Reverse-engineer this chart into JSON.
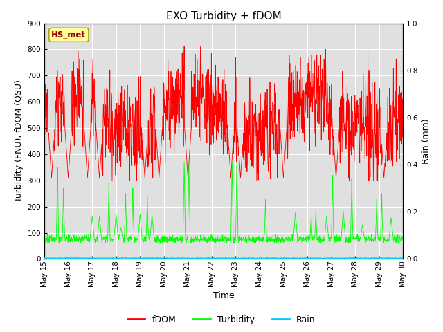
{
  "title": "EXO Turbidity + fDOM",
  "xlabel": "Time",
  "ylabel_left": "Turbidity (FNU), fDOM (QSU)",
  "ylabel_right": "Rain (mm)",
  "station_label": "HS_met",
  "xlim_days": [
    15,
    30
  ],
  "ylim_left": [
    0,
    900
  ],
  "ylim_right": [
    0,
    1.0
  ],
  "x_ticks": [
    15,
    16,
    17,
    18,
    19,
    20,
    21,
    22,
    23,
    24,
    25,
    26,
    27,
    28,
    29,
    30
  ],
  "x_tick_labels": [
    "May 15",
    "May 16",
    "May 17",
    "May 18",
    "May 19",
    "May 20",
    "May 21",
    "May 22",
    "May 23",
    "May 24",
    "May 25",
    "May 26",
    "May 27",
    "May 28",
    "May 29",
    "May 30"
  ],
  "y_ticks_left": [
    0,
    100,
    200,
    300,
    400,
    500,
    600,
    700,
    800,
    900
  ],
  "y_ticks_right": [
    0.0,
    0.2,
    0.4,
    0.6,
    0.8,
    1.0
  ],
  "fdom_color": "#ff0000",
  "turbidity_color": "#00ff00",
  "rain_color": "#00ccff",
  "background_color": "#ffffff",
  "plot_bg_color": "#e0e0e0",
  "grid_color": "#ffffff",
  "station_box_color": "#ffff99",
  "station_border_color": "#999900",
  "station_text_color": "#990000",
  "legend_entries": [
    "fDOM",
    "Turbidity",
    "Rain"
  ],
  "title_fontsize": 11,
  "label_fontsize": 9,
  "tick_fontsize": 7.5
}
